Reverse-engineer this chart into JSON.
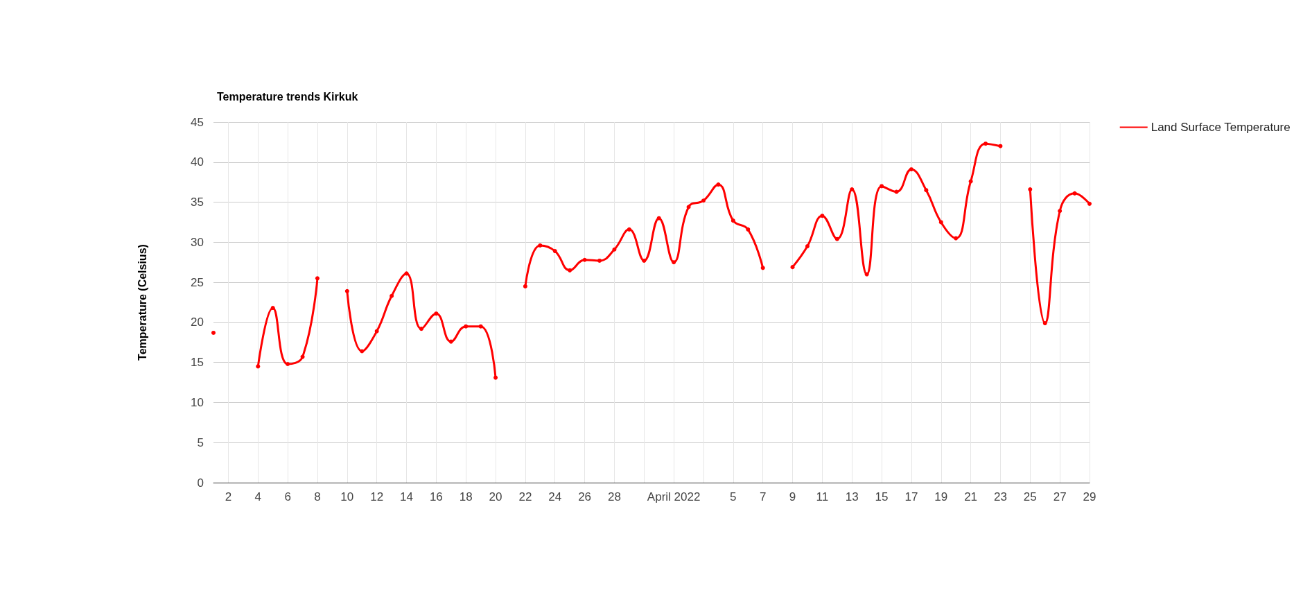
{
  "chart_data": {
    "type": "line",
    "title": "Temperature trends Kirkuk",
    "ylabel": "Temperature (Celsius)",
    "x": [
      "2022-03-01",
      "2022-03-02",
      "2022-03-03",
      "2022-03-04",
      "2022-03-05",
      "2022-03-06",
      "2022-03-07",
      "2022-03-08",
      "2022-03-09",
      "2022-03-10",
      "2022-03-11",
      "2022-03-12",
      "2022-03-13",
      "2022-03-14",
      "2022-03-15",
      "2022-03-16",
      "2022-03-17",
      "2022-03-18",
      "2022-03-19",
      "2022-03-20",
      "2022-03-21",
      "2022-03-22",
      "2022-03-23",
      "2022-03-24",
      "2022-03-25",
      "2022-03-26",
      "2022-03-27",
      "2022-03-28",
      "2022-03-29",
      "2022-03-30",
      "2022-03-31",
      "2022-04-01",
      "2022-04-02",
      "2022-04-03",
      "2022-04-04",
      "2022-04-05",
      "2022-04-06",
      "2022-04-07",
      "2022-04-08",
      "2022-04-09",
      "2022-04-10",
      "2022-04-11",
      "2022-04-12",
      "2022-04-13",
      "2022-04-14",
      "2022-04-15",
      "2022-04-16",
      "2022-04-17",
      "2022-04-18",
      "2022-04-19",
      "2022-04-20",
      "2022-04-21",
      "2022-04-22",
      "2022-04-23",
      "2022-04-24",
      "2022-04-25",
      "2022-04-26",
      "2022-04-27",
      "2022-04-28",
      "2022-04-29"
    ],
    "series": [
      {
        "name": "Land Surface Temperature",
        "color": "#ff0000",
        "values": [
          18.7,
          null,
          null,
          14.5,
          21.8,
          14.8,
          15.7,
          25.5,
          null,
          23.9,
          16.4,
          18.9,
          23.3,
          26.1,
          19.2,
          21.1,
          17.6,
          19.5,
          19.5,
          13.1,
          null,
          24.5,
          29.6,
          28.9,
          26.5,
          27.8,
          27.7,
          29.1,
          31.6,
          27.7,
          33.0,
          27.5,
          34.4,
          35.2,
          37.2,
          32.7,
          31.6,
          26.8,
          null,
          26.9,
          29.5,
          33.3,
          30.4,
          36.6,
          26.0,
          37.0,
          36.3,
          39.1,
          36.5,
          32.5,
          30.5,
          37.6,
          42.3,
          42.0,
          null,
          36.6,
          19.9,
          33.9,
          36.1,
          34.8
        ]
      }
    ],
    "xlim": [
      "2022-03-01",
      "2022-04-29"
    ],
    "xticks": [
      {
        "value": "2022-03-02",
        "label": "2"
      },
      {
        "value": "2022-03-04",
        "label": "4"
      },
      {
        "value": "2022-03-06",
        "label": "6"
      },
      {
        "value": "2022-03-08",
        "label": "8"
      },
      {
        "value": "2022-03-10",
        "label": "10"
      },
      {
        "value": "2022-03-12",
        "label": "12"
      },
      {
        "value": "2022-03-14",
        "label": "14"
      },
      {
        "value": "2022-03-16",
        "label": "16"
      },
      {
        "value": "2022-03-18",
        "label": "18"
      },
      {
        "value": "2022-03-20",
        "label": "20"
      },
      {
        "value": "2022-03-22",
        "label": "22"
      },
      {
        "value": "2022-03-24",
        "label": "24"
      },
      {
        "value": "2022-03-26",
        "label": "26"
      },
      {
        "value": "2022-03-28",
        "label": "28"
      },
      {
        "value": "2022-03-30",
        "label": null
      },
      {
        "value": "2022-04-01",
        "label": "April 2022"
      },
      {
        "value": "2022-04-03",
        "label": null
      },
      {
        "value": "2022-04-05",
        "label": "5"
      },
      {
        "value": "2022-04-07",
        "label": "7"
      },
      {
        "value": "2022-04-09",
        "label": "9"
      },
      {
        "value": "2022-04-11",
        "label": "11"
      },
      {
        "value": "2022-04-13",
        "label": "13"
      },
      {
        "value": "2022-04-15",
        "label": "15"
      },
      {
        "value": "2022-04-17",
        "label": "17"
      },
      {
        "value": "2022-04-19",
        "label": "19"
      },
      {
        "value": "2022-04-21",
        "label": "21"
      },
      {
        "value": "2022-04-23",
        "label": "23"
      },
      {
        "value": "2022-04-25",
        "label": "25"
      },
      {
        "value": "2022-04-27",
        "label": "27"
      },
      {
        "value": "2022-04-29",
        "label": "29"
      }
    ],
    "ylim": [
      0,
      45
    ],
    "yticks": [
      0,
      5,
      10,
      15,
      20,
      25,
      30,
      35,
      40,
      45
    ],
    "grid": true,
    "legend": "top right",
    "marker": "circle",
    "line_style": "solid"
  }
}
